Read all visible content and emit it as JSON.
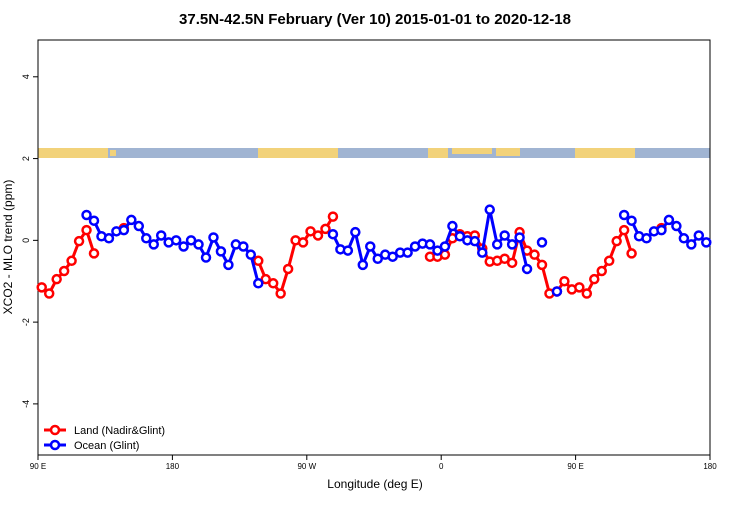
{
  "chart_data": {
    "type": "line",
    "title": "37.5N-42.5N February (Ver 10)   2015-01-01 to 2020-12-18",
    "x_label": "Longitude (deg E)",
    "y_label": "XCO2 - MLO trend (ppm)",
    "x": [
      92.5,
      97.5,
      102.5,
      107.5,
      112.5,
      117.5,
      122.5,
      127.5,
      132.5,
      137.5,
      142.5,
      147.5,
      152.5,
      157.5,
      162.5,
      167.5,
      172.5,
      177.5,
      182.5,
      187.5,
      192.5,
      197.5,
      202.5,
      207.5,
      212.5,
      217.5,
      222.5,
      227.5,
      232.5,
      237.5,
      242.5,
      247.5,
      252.5,
      257.5,
      262.5,
      267.5,
      272.5,
      277.5,
      282.5,
      287.5,
      292.5,
      297.5,
      302.5,
      307.5,
      312.5,
      317.5,
      322.5,
      327.5,
      332.5,
      337.5,
      342.5,
      347.5,
      352.5,
      357.5,
      362.5,
      367.5,
      372.5,
      377.5,
      382.5,
      387.5,
      392.5,
      397.5,
      402.5,
      407.5,
      412.5,
      417.5,
      422.5,
      427.5,
      432.5,
      437.5,
      442.5,
      447.5,
      452.5,
      457.5,
      462.5,
      467.5,
      472.5,
      477.5,
      482.5,
      487.5,
      492.5,
      497.5,
      502.5,
      507.5,
      512.5,
      517.5,
      522.5,
      527.5,
      532.5,
      537.5
    ],
    "series": [
      {
        "name": "Land (Nadir&Glint)",
        "color": "#ff0000",
        "values": [
          -1.15,
          -1.3,
          -0.95,
          -0.75,
          -0.5,
          -0.02,
          0.25,
          -0.32,
          null,
          null,
          null,
          0.3,
          null,
          null,
          null,
          null,
          null,
          null,
          null,
          null,
          null,
          null,
          null,
          null,
          null,
          null,
          null,
          null,
          null,
          -0.5,
          -0.95,
          -1.05,
          -1.3,
          -0.7,
          0,
          -0.05,
          0.22,
          0.12,
          0.28,
          0.58,
          null,
          null,
          null,
          null,
          null,
          null,
          null,
          null,
          null,
          null,
          null,
          null,
          -0.4,
          -0.4,
          -0.35,
          0.05,
          0.15,
          0.1,
          0.12,
          -0.2,
          -0.52,
          -0.5,
          -0.45,
          -0.55,
          0.2,
          -0.25,
          -0.35,
          -0.6,
          -1.3,
          -1.25,
          -1.0,
          -1.2,
          -1.15,
          -1.3,
          -0.95,
          -0.75,
          -0.5,
          -0.02,
          0.25,
          -0.32,
          null,
          null,
          null,
          0.3,
          null,
          null,
          null,
          null,
          null,
          null
        ]
      },
      {
        "name": "Ocean (Glint)",
        "color": "#0000ff",
        "values": [
          null,
          null,
          null,
          null,
          null,
          null,
          0.62,
          0.48,
          0.1,
          0.05,
          0.22,
          0.25,
          0.5,
          0.35,
          0.05,
          -0.1,
          0.12,
          -0.05,
          0,
          -0.15,
          0,
          -0.1,
          -0.42,
          0.07,
          -0.27,
          -0.6,
          -0.1,
          -0.15,
          -0.35,
          -1.05,
          null,
          null,
          null,
          null,
          null,
          null,
          null,
          null,
          null,
          0.15,
          -0.22,
          -0.25,
          0.2,
          -0.6,
          -0.15,
          -0.45,
          -0.35,
          -0.4,
          -0.3,
          -0.3,
          -0.15,
          -0.08,
          -0.1,
          -0.25,
          -0.15,
          0.35,
          0.1,
          0,
          -0.02,
          -0.3,
          0.75,
          -0.1,
          0.12,
          -0.1,
          0.07,
          -0.7,
          null,
          -0.05,
          null,
          -1.25,
          null,
          null,
          null,
          null,
          null,
          null,
          null,
          null,
          0.62,
          0.48,
          0.1,
          0.05,
          0.22,
          0.25,
          0.5,
          0.35,
          0.05,
          -0.1,
          0.12,
          -0.05
        ]
      }
    ],
    "xlim": [
      90,
      540
    ],
    "xticks": [
      {
        "value": 90,
        "label": "90 E"
      },
      180,
      {
        "value": 270,
        "label": "90 W"
      },
      {
        "value": 360,
        "label": "0"
      },
      {
        "value": 450,
        "label": "90 E"
      },
      {
        "value": 540,
        "label": "180"
      }
    ],
    "ylim": [
      -5.25,
      4.9
    ],
    "yticks": [
      -4,
      -2,
      0,
      2,
      4
    ],
    "legend": "bottom-left"
  }
}
